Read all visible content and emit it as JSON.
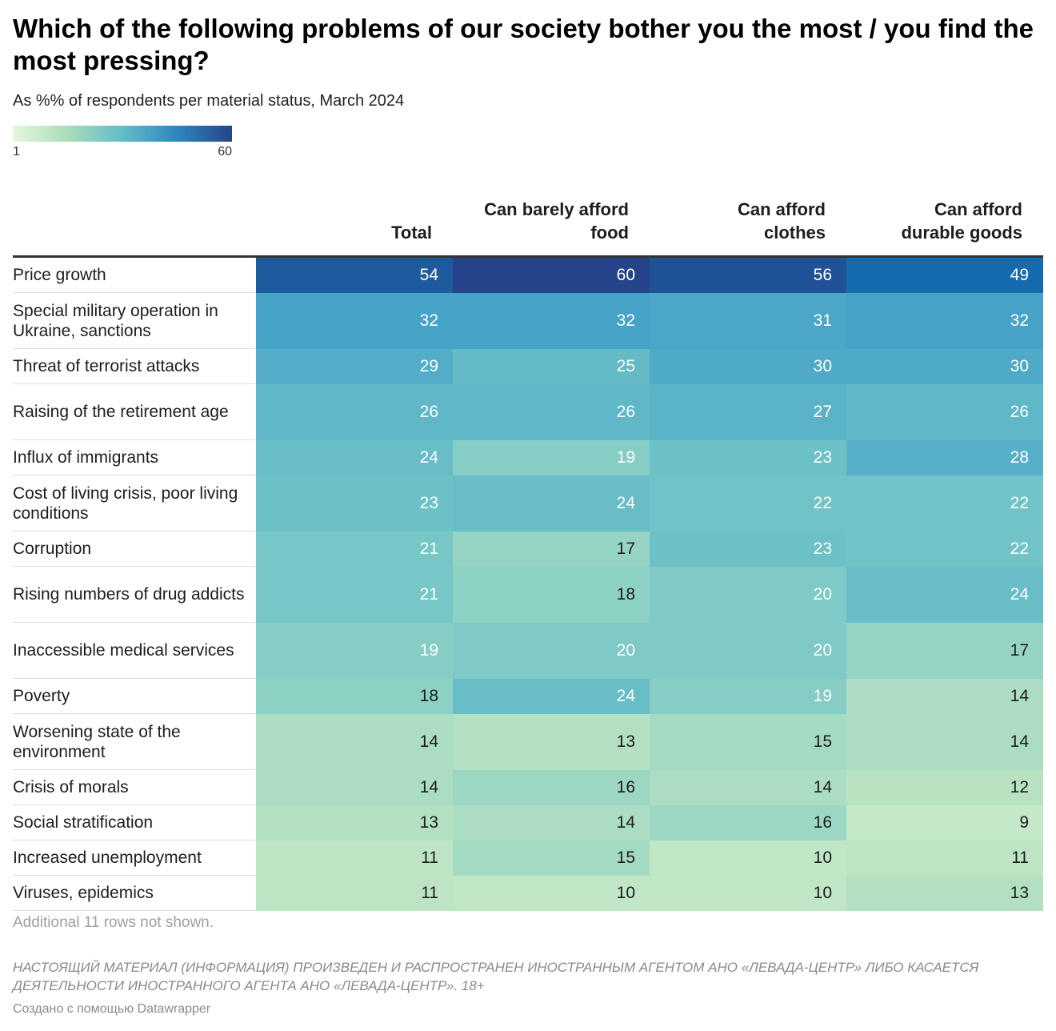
{
  "chart_data": {
    "type": "table",
    "title": "Which of the following problems of our society bother you the most / you find the most pressing?",
    "subtitle": "As %% of respondents per material status, March 2024",
    "color_scale": {
      "min": 1,
      "max": 60,
      "min_label": "1",
      "max_label": "60",
      "colors": [
        "#e6f6df",
        "#a9dcb9",
        "#62bcc9",
        "#2f86bf",
        "#26448a"
      ]
    },
    "columns": [
      {
        "line1": "",
        "line2": "Total"
      },
      {
        "line1": "Can barely afford",
        "line2": "food"
      },
      {
        "line1": "Can afford",
        "line2": "clothes"
      },
      {
        "line1": "Can afford",
        "line2": "durable goods"
      }
    ],
    "rows": [
      {
        "label": "Price growth",
        "values": [
          54,
          60,
          56,
          49
        ]
      },
      {
        "label": "Special military operation in Ukraine, sanctions",
        "values": [
          32,
          32,
          31,
          32
        ]
      },
      {
        "label": "Threat of terrorist attacks",
        "values": [
          29,
          25,
          30,
          30
        ]
      },
      {
        "label": "Raising of the retirement age",
        "values": [
          26,
          26,
          27,
          26
        ]
      },
      {
        "label": "Influx of immigrants",
        "values": [
          24,
          19,
          23,
          28
        ]
      },
      {
        "label": "Cost of living crisis, poor living conditions",
        "values": [
          23,
          24,
          22,
          22
        ]
      },
      {
        "label": "Corruption",
        "values": [
          21,
          17,
          23,
          22
        ]
      },
      {
        "label": "Rising numbers of drug addicts",
        "values": [
          21,
          18,
          20,
          24
        ]
      },
      {
        "label": "Inaccessible medical services",
        "values": [
          19,
          20,
          20,
          17
        ]
      },
      {
        "label": "Poverty",
        "values": [
          18,
          24,
          19,
          14
        ]
      },
      {
        "label": "Worsening state of the environment",
        "values": [
          14,
          13,
          15,
          14
        ]
      },
      {
        "label": "Crisis of morals",
        "values": [
          14,
          16,
          14,
          12
        ]
      },
      {
        "label": "Social stratification",
        "values": [
          13,
          14,
          16,
          9
        ]
      },
      {
        "label": "Increased unemployment",
        "values": [
          11,
          15,
          10,
          11
        ]
      },
      {
        "label": "Viruses, epidemics",
        "values": [
          11,
          10,
          10,
          13
        ]
      }
    ],
    "note": "Additional 11 rows not shown."
  },
  "footer": {
    "disclaimer": "НАСТОЯЩИЙ МАТЕРИАЛ (ИНФОРМАЦИЯ) ПРОИЗВЕДЕН И РАСПРОСТРАНЕН ИНОСТРАННЫМ АГЕНТОМ АНО «ЛЕВАДА-ЦЕНТР» ЛИБО КАСАЕТСЯ ДЕЯТЕЛЬНОСТИ ИНОСТРАННОГО АГЕНТА АНО «ЛЕВАДА-ЦЕНТР». 18+",
    "credit": "Создано с помощью Datawrapper"
  }
}
